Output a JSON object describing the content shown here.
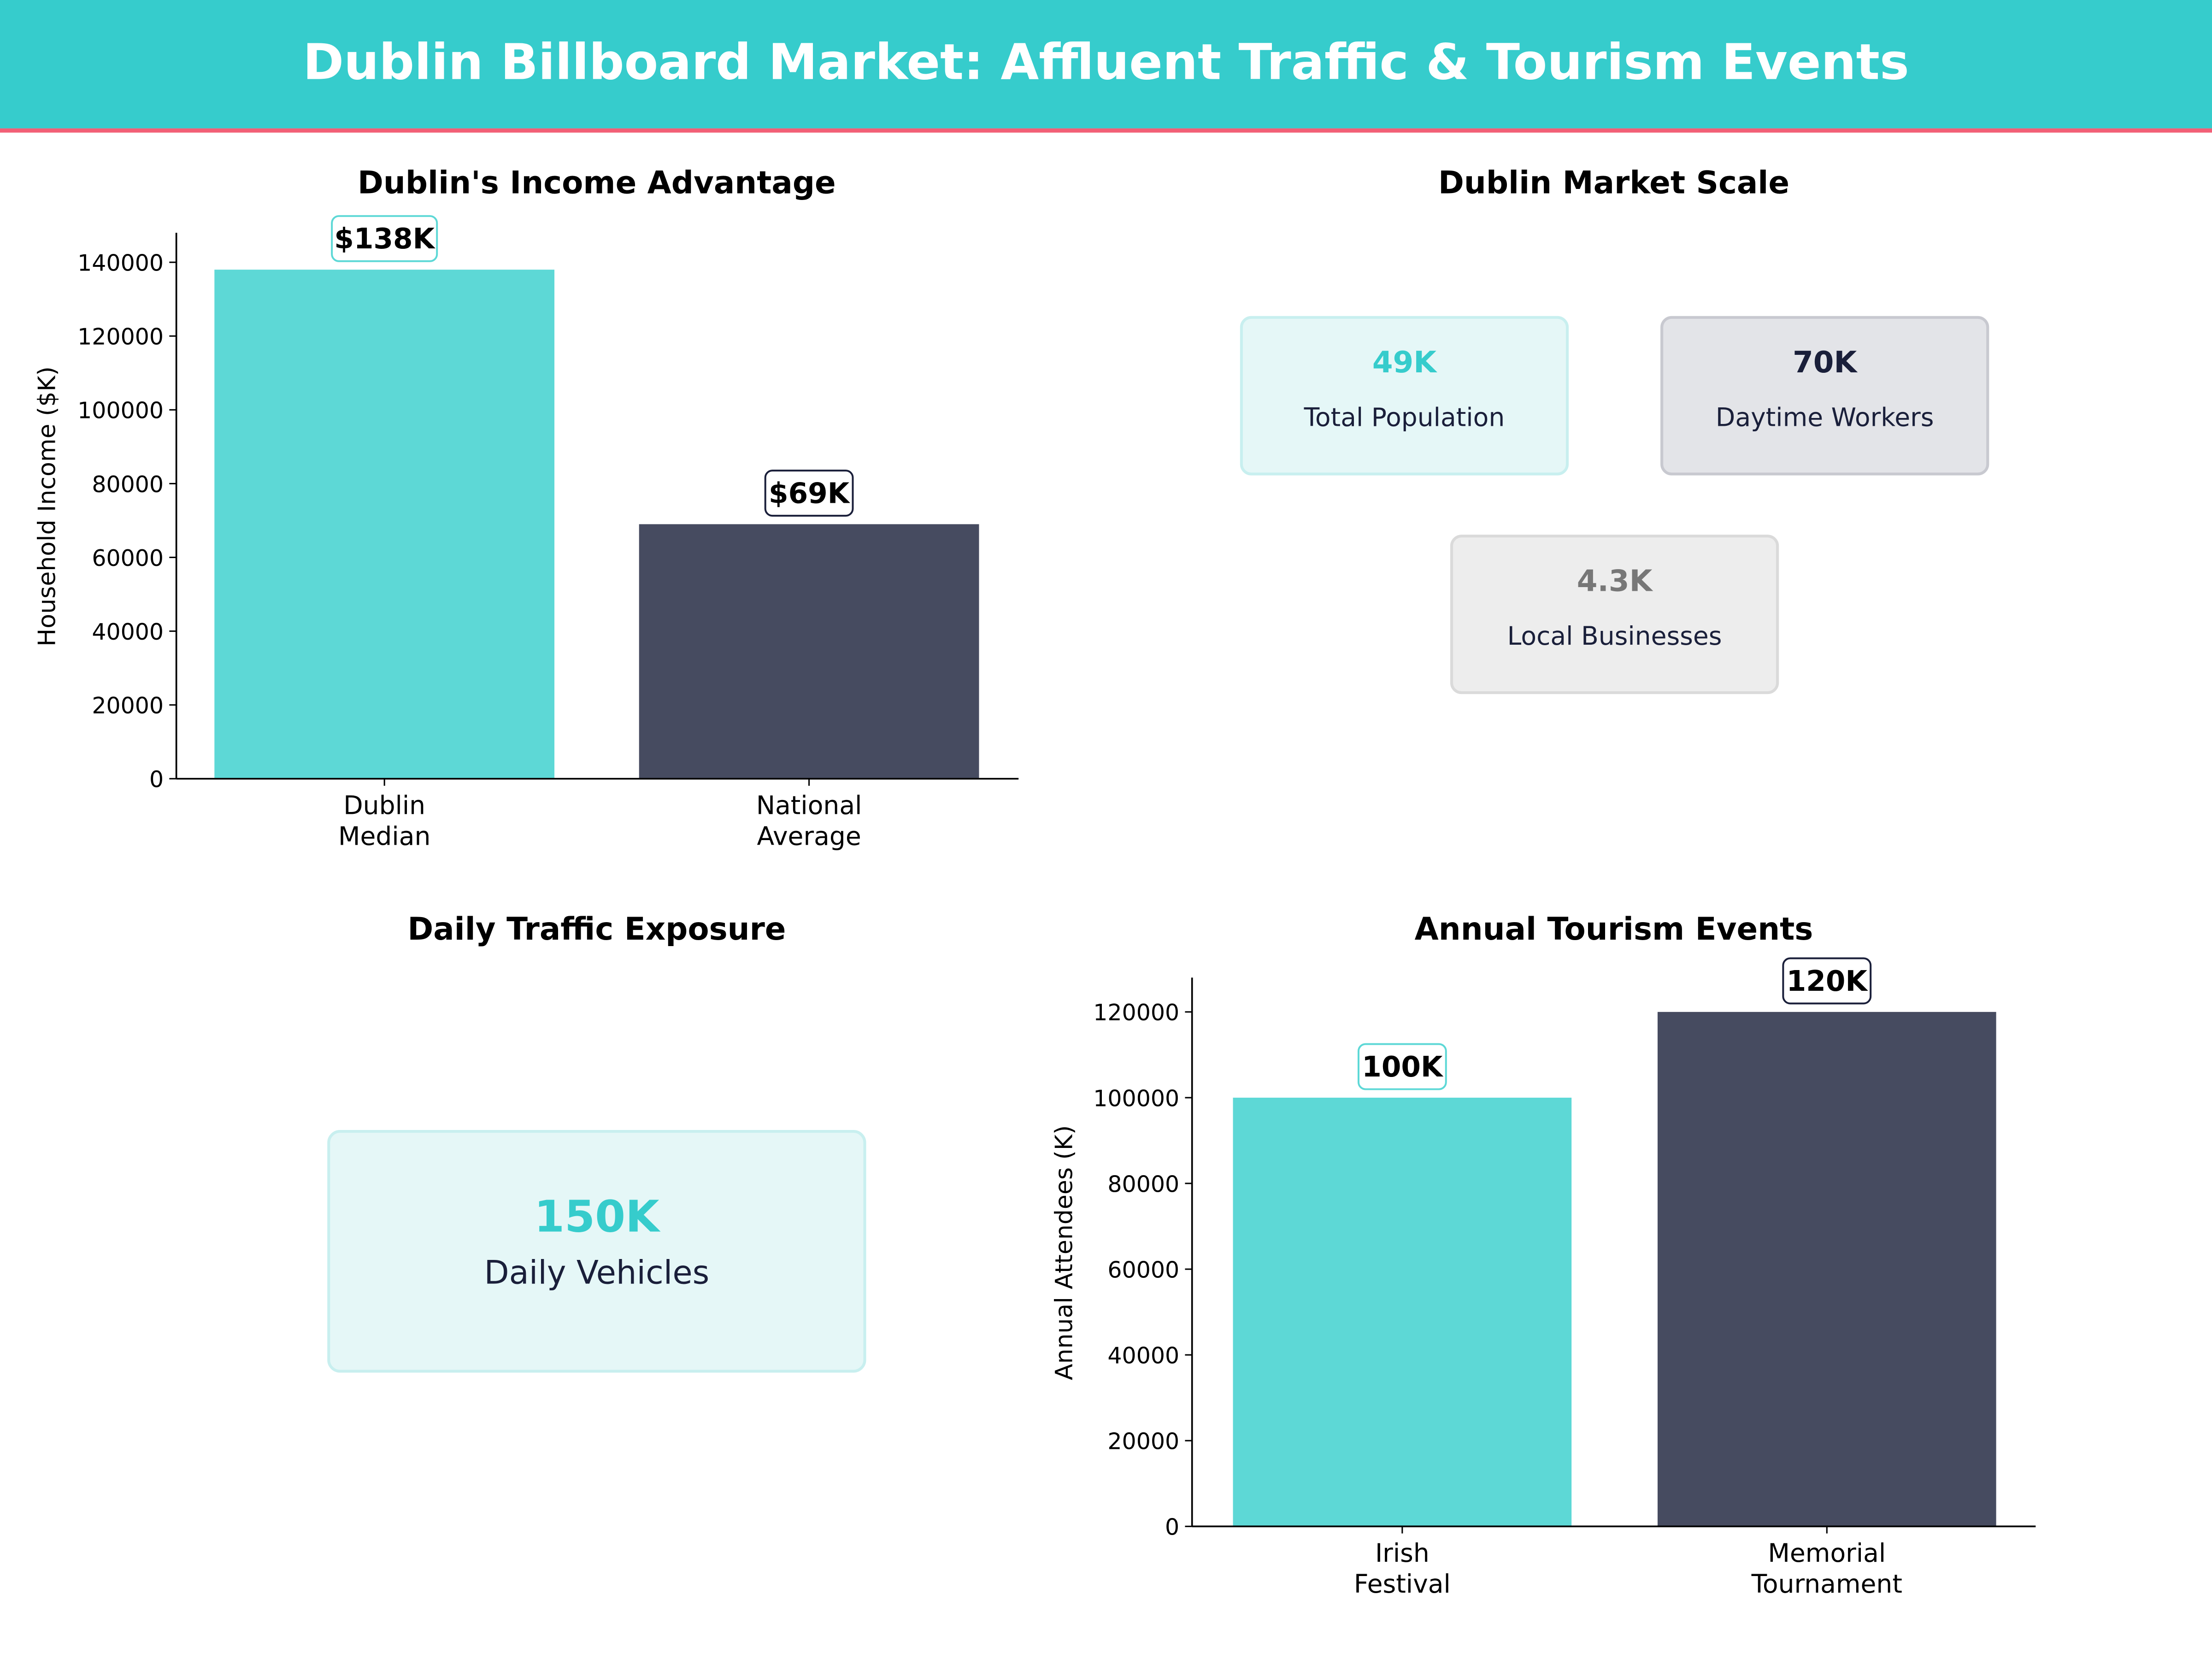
{
  "header": {
    "title": "Dublin Billboard Market: Affluent Traffic & Tourism Events"
  },
  "colors": {
    "teal": "#36CCCC",
    "bar_teal": "#5DD8D6",
    "bar_navy": "#464B60",
    "accent_pink": "#F25F76",
    "navy_text": "#1A1F3A"
  },
  "chart_data": [
    {
      "type": "bar",
      "title": "Dublin's Income Advantage",
      "ylabel": "Household Income ($K)",
      "xlabel": "",
      "categories": [
        "Dublin\nMedian",
        "National\nAverage"
      ],
      "values": [
        138000,
        69000
      ],
      "data_labels": [
        "$138K",
        "$69K"
      ],
      "ylim": [
        0,
        148000
      ],
      "yticks": [
        0,
        20000,
        40000,
        60000,
        80000,
        100000,
        120000,
        140000
      ],
      "grid": false
    },
    {
      "type": "bar",
      "title": "Annual Tourism Events",
      "ylabel": "Annual Attendees (K)",
      "xlabel": "",
      "categories": [
        "Irish\nFestival",
        "Memorial\nTournament"
      ],
      "values": [
        100000,
        120000
      ],
      "data_labels": [
        "100K",
        "120K"
      ],
      "ylim": [
        0,
        128000
      ],
      "yticks": [
        0,
        20000,
        40000,
        60000,
        80000,
        100000,
        120000
      ],
      "grid": false
    }
  ],
  "market_scale": {
    "title": "Dublin Market Scale",
    "cards": [
      {
        "value": "49K",
        "label": "Total Population"
      },
      {
        "value": "70K",
        "label": "Daytime Workers"
      },
      {
        "value": "4.3K",
        "label": "Local Businesses"
      }
    ]
  },
  "traffic": {
    "title": "Daily Traffic Exposure",
    "value": "150K",
    "label": "Daily Vehicles"
  }
}
